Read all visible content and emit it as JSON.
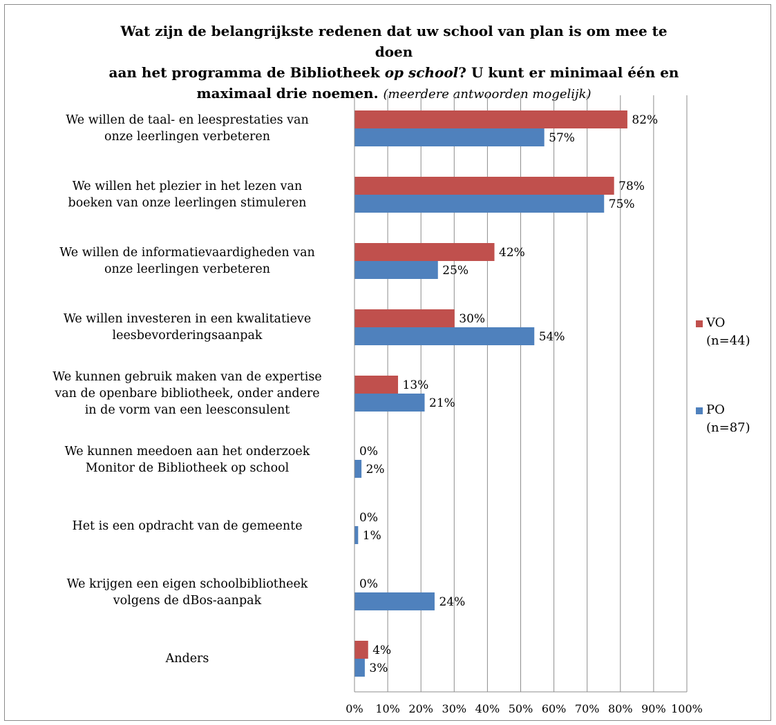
{
  "chart_data": {
    "type": "bar",
    "orientation": "horizontal",
    "title": "Wat zijn de belangrijkste redenen dat uw school van plan is om mee te doen aan het programma de Bibliotheek op school? U kunt er minimaal één en maximaal drie noemen.",
    "title_note": "(meerdere antwoorden mogelijk)",
    "title_parts": {
      "line1": "Wat zijn de belangrijkste redenen dat uw school van plan is om mee te doen",
      "line2_a": "aan het programma de Bibliotheek ",
      "line2_em": "op school",
      "line2_b": "? U kunt er minimaal één en",
      "line3": "maximaal drie noemen. ",
      "note": "(meerdere antwoorden mogelijk)"
    },
    "categories": [
      "We willen de taal- en leesprestaties van\nonze leerlingen verbeteren",
      "We willen het plezier in het lezen van\nboeken van onze leerlingen stimuleren",
      "We willen de informatievaardigheden van\nonze leerlingen verbeteren",
      "We willen investeren in een kwalitatieve\nleesbevorderingsaanpak",
      "We kunnen gebruik maken van de expertise\nvan de openbare bibliotheek, onder andere\nin de vorm van een leesconsulent",
      "We kunnen meedoen aan het onderzoek\nMonitor de Bibliotheek op school",
      "Het is een opdracht van de gemeente",
      "We krijgen een eigen schoolbibliotheek\nvolgens de dBos-aanpak",
      "Anders"
    ],
    "series": [
      {
        "name": "VO\n(n=44)",
        "color": "#c0504d",
        "values": [
          82,
          78,
          42,
          30,
          13,
          0,
          0,
          0,
          4
        ]
      },
      {
        "name": "PO\n(n=87)",
        "color": "#4f81bd",
        "values": [
          57,
          75,
          25,
          54,
          21,
          2,
          1,
          24,
          3
        ]
      }
    ],
    "xlim": [
      0,
      100
    ],
    "x_ticks": [
      "0%",
      "10%",
      "20%",
      "30%",
      "40%",
      "50%",
      "60%",
      "70%",
      "80%",
      "90%",
      "100%"
    ],
    "value_suffix": "%",
    "grid": true,
    "legend_position": "right"
  }
}
